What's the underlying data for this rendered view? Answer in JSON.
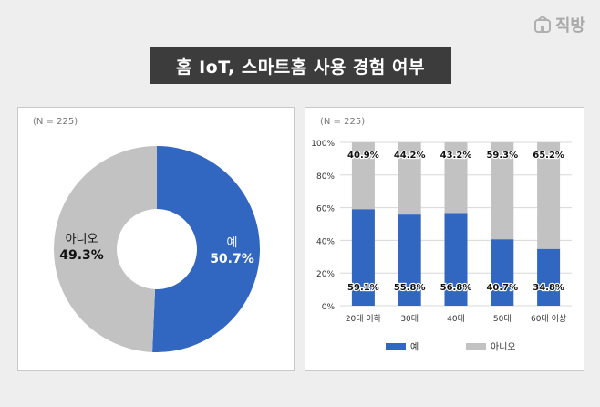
{
  "logo": {
    "text": "직방",
    "icon": "building-icon"
  },
  "title": "홈 IoT, 스마트홈 사용 경험 여부",
  "colors": {
    "yes": "#3167c0",
    "no": "#c3c2c2",
    "title_bg": "#3c3c3c"
  },
  "chart_data": [
    {
      "type": "pie",
      "note": "(N = 225)",
      "slices": [
        {
          "label": "예",
          "value": 50.7,
          "display": "50.7%"
        },
        {
          "label": "아니오",
          "value": 49.3,
          "display": "49.3%"
        }
      ]
    },
    {
      "type": "bar",
      "stacked": true,
      "note": "(N = 225)",
      "categories": [
        "20대 이하",
        "30대",
        "40대",
        "50대",
        "60대 이상"
      ],
      "series": [
        {
          "name": "예",
          "values": [
            59.1,
            55.8,
            56.8,
            40.7,
            34.8
          ],
          "labels": [
            "59.1%",
            "55.8%",
            "56.8%",
            "40.7%",
            "34.8%"
          ]
        },
        {
          "name": "아니오",
          "values": [
            40.9,
            44.2,
            43.2,
            59.3,
            65.2
          ],
          "labels": [
            "40.9%",
            "44.2%",
            "43.2%",
            "59.3%",
            "65.2%"
          ]
        }
      ],
      "ylim": [
        0,
        100
      ],
      "yticks": [
        "0%",
        "20%",
        "40%",
        "60%",
        "80%",
        "100%"
      ],
      "grid": true,
      "legend_position": "bottom"
    }
  ]
}
